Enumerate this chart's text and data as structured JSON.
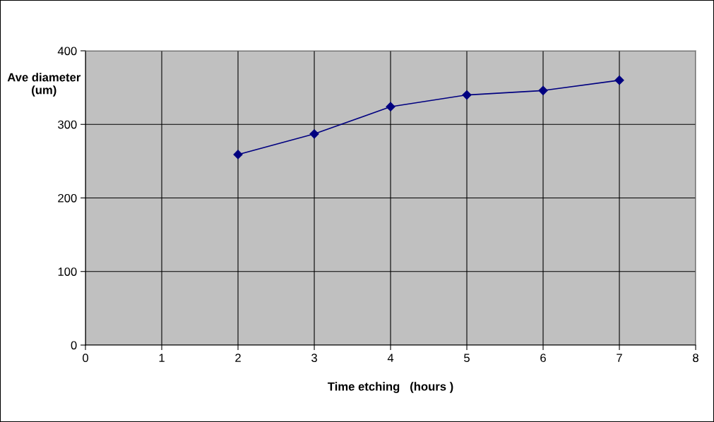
{
  "chart_data": {
    "type": "line",
    "xlabel": "Time etching   (hours )",
    "ylabel": "Ave diameter\n(um)",
    "x": [
      2,
      3,
      4,
      5,
      6,
      7
    ],
    "series": [
      {
        "color": "#000080",
        "values": [
          259,
          287,
          324,
          340,
          346,
          360
        ]
      }
    ],
    "xlim": [
      0,
      8
    ],
    "xticks": [
      0,
      1,
      2,
      3,
      4,
      5,
      6,
      7,
      8
    ],
    "ylim": [
      0,
      400
    ],
    "yticks": [
      0,
      100,
      200,
      300,
      400
    ],
    "grid": true,
    "legend": false,
    "marker": "diamond",
    "line_style": "solid"
  }
}
